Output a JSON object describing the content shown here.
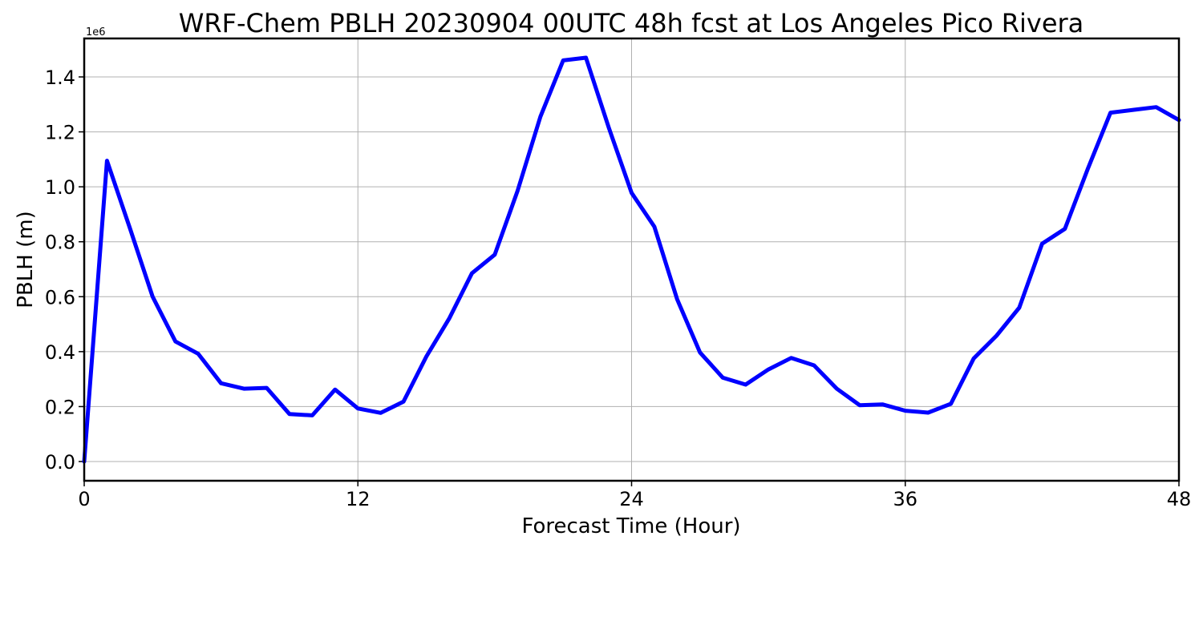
{
  "chart_data": {
    "type": "line",
    "title": "WRF-Chem PBLH  20230904 00UTC 48h fcst at Los Angeles Pico Rivera",
    "xlabel": "Forecast Time (Hour)",
    "ylabel": "PBLH  (m)",
    "y_offset_label": "1e6",
    "xlim": [
      0,
      48
    ],
    "ylim": [
      -0.07,
      1.54
    ],
    "y_scale_multiplier": 1000000,
    "x_ticks": [
      0,
      12,
      24,
      36,
      48
    ],
    "x_tick_labels": [
      "0",
      "12",
      "24",
      "36",
      "48"
    ],
    "y_ticks": [
      0.0,
      0.2,
      0.4,
      0.6,
      0.8,
      1.0,
      1.2,
      1.4
    ],
    "y_tick_labels": [
      "0.0",
      "0.2",
      "0.4",
      "0.6",
      "0.8",
      "1.0",
      "1.2",
      "1.4"
    ],
    "grid": true,
    "line_color": "#0000ff",
    "series": [
      {
        "x": [
          0,
          1,
          2,
          3,
          4,
          5,
          6,
          7,
          8,
          9,
          10,
          11,
          12,
          13,
          14,
          15,
          16,
          17,
          18,
          19,
          20,
          21,
          22,
          23,
          24,
          25,
          26,
          27,
          28,
          29,
          30,
          31,
          32,
          33,
          34,
          35,
          36,
          37,
          38,
          39,
          40,
          41,
          42,
          43,
          44,
          45,
          46,
          47,
          48
        ],
        "values": [
          0.0,
          1.095,
          0.85,
          0.6,
          0.437,
          0.392,
          0.285,
          0.265,
          0.268,
          0.173,
          0.168,
          0.262,
          0.193,
          0.177,
          0.218,
          0.382,
          0.52,
          0.685,
          0.753,
          0.985,
          1.255,
          1.46,
          1.47,
          1.215,
          0.978,
          0.855,
          0.59,
          0.397,
          0.305,
          0.28,
          0.335,
          0.377,
          0.35,
          0.265,
          0.205,
          0.208,
          0.185,
          0.178,
          0.21,
          0.375,
          0.458,
          0.56,
          0.793,
          0.847,
          1.065,
          1.27,
          1.28,
          1.29,
          1.243
        ]
      }
    ]
  }
}
